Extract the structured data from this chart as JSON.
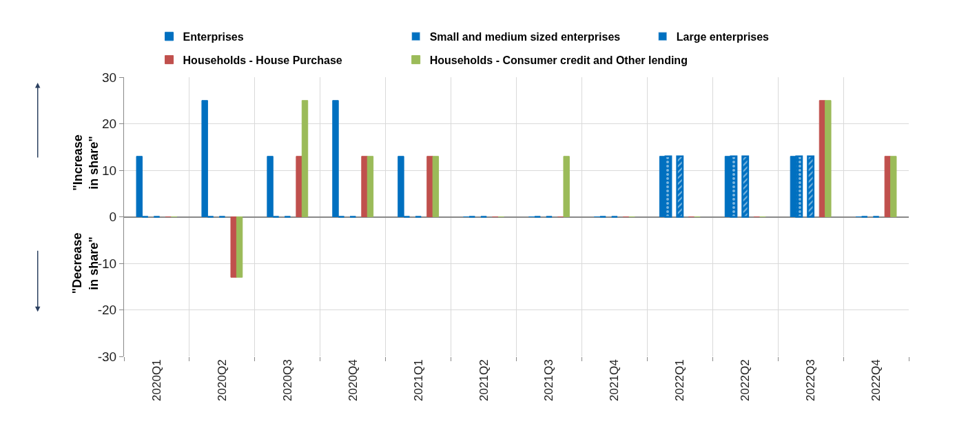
{
  "chart_data": {
    "type": "bar",
    "categories": [
      "2020Q1",
      "2020Q2",
      "2020Q3",
      "2020Q4",
      "2021Q1",
      "2021Q2",
      "2021Q3",
      "2021Q4",
      "2022Q1",
      "2022Q2",
      "2022Q3",
      "2022Q4"
    ],
    "series": [
      {
        "name": "Enterprises",
        "color": "#0070c0",
        "values": [
          13,
          25,
          13,
          25,
          13,
          0,
          0,
          0,
          13,
          13,
          13,
          0
        ]
      },
      {
        "name": "Small and medium sized enterprises",
        "color": "#0070c0",
        "values": [
          0,
          0,
          0,
          0,
          0,
          0,
          0,
          0,
          13,
          13,
          13,
          0
        ]
      },
      {
        "name": "Large enterprises",
        "color": "#0070c0",
        "values": [
          0,
          0,
          0,
          0,
          0,
          0,
          0,
          0,
          13,
          13,
          13,
          0
        ]
      },
      {
        "name": "Households - House Purchase",
        "color": "#c0504d",
        "values": [
          0,
          -13,
          13,
          13,
          13,
          0,
          0,
          0,
          0,
          0,
          25,
          13
        ]
      },
      {
        "name": "Households - Consumer credit and Other lending",
        "color": "#9bbb59",
        "values": [
          0,
          -13,
          25,
          13,
          13,
          0,
          13,
          0,
          0,
          0,
          25,
          13
        ]
      }
    ],
    "ylim": [
      -30,
      30
    ],
    "yticks": [
      -30,
      -20,
      -10,
      0,
      10,
      20,
      30
    ],
    "annotations": [
      "\"Increase\nin share\"",
      "\"Decrease\nin share\""
    ],
    "grid": true,
    "legend": "top"
  }
}
